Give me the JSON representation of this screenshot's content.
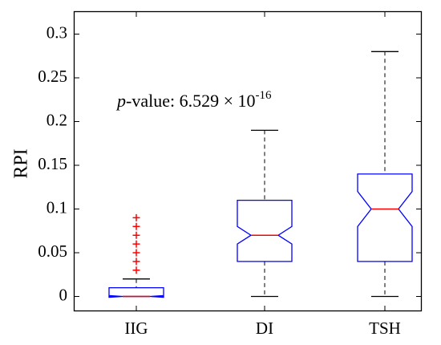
{
  "chart_data": {
    "type": "boxplot",
    "categories": [
      "IIG",
      "DI",
      "TSH"
    ],
    "ylabel": "RPI",
    "xlabel": "",
    "ylim": [
      -0.01,
      0.33
    ],
    "yticks": [
      0,
      0.05,
      0.1,
      0.15,
      0.2,
      0.25,
      0.3
    ],
    "ytick_labels": [
      "0",
      "0.05",
      "0.1",
      "0.15",
      "0.2",
      "0.25",
      "0.3"
    ],
    "notched": true,
    "boxes": [
      {
        "category": "IIG",
        "min": 0,
        "q1": 0,
        "median": 0,
        "q3": 0.01,
        "max": 0.02,
        "notch_low": -0.001,
        "notch_high": 0.001,
        "outliers": [
          0.03,
          0.04,
          0.05,
          0.06,
          0.07,
          0.08,
          0.09
        ]
      },
      {
        "category": "DI",
        "min": 0,
        "q1": 0.04,
        "median": 0.07,
        "q3": 0.11,
        "max": 0.19,
        "notch_low": 0.06,
        "notch_high": 0.08,
        "outliers": []
      },
      {
        "category": "TSH",
        "min": 0,
        "q1": 0.04,
        "median": 0.1,
        "q3": 0.14,
        "max": 0.28,
        "notch_low": 0.08,
        "notch_high": 0.12,
        "outliers": []
      }
    ],
    "annotation": {
      "p_letter": "p",
      "text": "-value: 6.529 × 10",
      "exponent": "-16"
    },
    "colors": {
      "box": "#0000ff",
      "median": "#ff0000",
      "whisker": "#000000",
      "outlier": "#ff0000",
      "axis": "#000000"
    },
    "grid": false
  }
}
